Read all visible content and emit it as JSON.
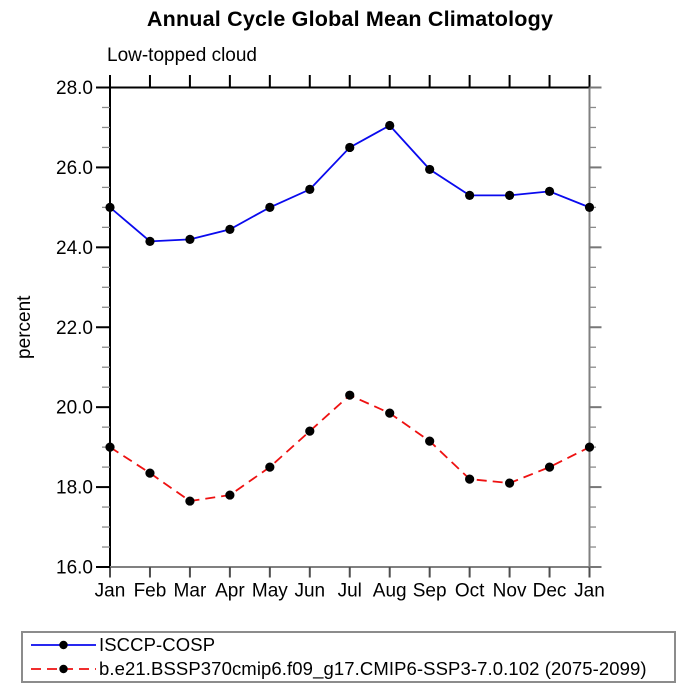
{
  "header": {
    "title": "Annual Cycle Global Mean Climatology",
    "subtitle": "Low-topped cloud"
  },
  "chart_data": {
    "type": "line",
    "title": "Annual Cycle Global Mean Climatology",
    "subtitle": "Low-topped cloud",
    "xlabel": "",
    "ylabel": "percent",
    "x_tick_labels": [
      "Jan",
      "Feb",
      "Mar",
      "Apr",
      "May",
      "Jun",
      "Jul",
      "Aug",
      "Sep",
      "Oct",
      "Nov",
      "Dec",
      "Jan"
    ],
    "y_tick_labels": [
      "28.0",
      "26.0",
      "24.0",
      "22.0",
      "20.0",
      "18.0",
      "16.0"
    ],
    "ylim": [
      16.0,
      28.0
    ],
    "y_major_step": 2.0,
    "y_minor_step": 0.5,
    "grid": false,
    "legend_position": "bottom",
    "series": [
      {
        "name": "ISCCP-COSP",
        "color": "#0a0aee",
        "line_style": "solid",
        "marker": "filled-circle",
        "marker_color": "#000000",
        "values": [
          25.0,
          24.15,
          24.2,
          24.45,
          25.0,
          25.45,
          26.5,
          27.05,
          25.95,
          25.3,
          25.3,
          25.4,
          25.0
        ]
      },
      {
        "name": "b.e21.BSSP370cmip6.f09_g17.CMIP6-SSP3-7.0.102 (2075-2099)",
        "color": "#ee1111",
        "line_style": "dashed",
        "marker": "filled-circle",
        "marker_color": "#000000",
        "values": [
          19.0,
          18.35,
          17.65,
          17.8,
          18.5,
          19.4,
          20.3,
          19.85,
          19.15,
          18.2,
          18.1,
          18.5,
          19.0
        ]
      }
    ]
  }
}
